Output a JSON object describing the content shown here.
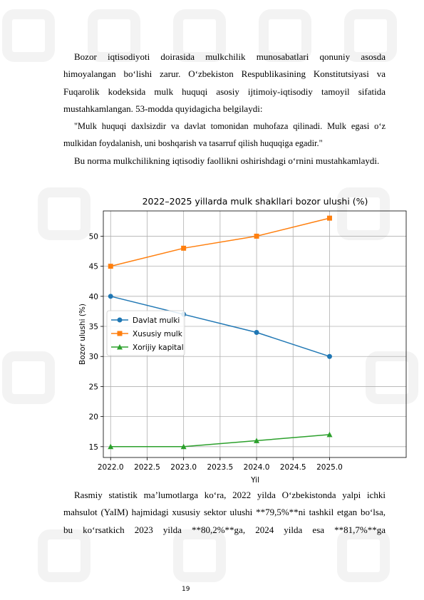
{
  "paragraphs": {
    "p1": "Bozor iqtisodiyoti doirasida mulkchilik munosabatlari qonuniy asosda himoyalangan bo‘lishi zarur. O‘zbekiston Respublikasining Konstitutsiyasi va Fuqarolik kodeksida mulk huquqi asosiy ijtimoiy-iqtisodiy tamoyil sifatida mustahkamlangan. 53-modda quyidagicha belgilaydi:",
    "p2": "\"Mulk huquqi daxlsizdir va davlat tomonidan muhofaza qilinadi. Mulk egasi o‘z mulkidan foydalanish, uni boshqarish va tasarruf qilish huquqiga egadir.\"",
    "p3": "Bu norma mulkchilikning iqtisodiy faollikni oshirishdagi o‘rnini mustahkamlaydi.",
    "p4": "Rasmiy statistik ma’lumotlarga ko‘ra, 2022 yilda O‘zbekistonda yalpi ichki mahsulot (YaIM) hajmidagi xususiy sektor ulushi **79,5%**ni tashkil etgan bo‘lsa, bu ko‘rsatkich 2023 yilda **80,2%**ga, 2024 yilda esa **81,7%**ga"
  },
  "page_number": "19",
  "chart_data": {
    "type": "line",
    "title": "2022–2025 yillarda mulk shakllari bozor ulushi (%)",
    "xlabel": "Yil",
    "ylabel": "Bozor ulushi (%)",
    "xlim": [
      2021.9,
      2026.05
    ],
    "ylim": [
      13.2,
      54.2
    ],
    "xticks": [
      "2022.0",
      "2022.5",
      "2023.0",
      "2023.5",
      "2024.0",
      "2024.5",
      "2025.0"
    ],
    "yticks": [
      "15",
      "20",
      "25",
      "30",
      "35",
      "40",
      "45",
      "50"
    ],
    "grid": true,
    "legend_position": "center-left",
    "x": [
      2022,
      2023,
      2024,
      2025
    ],
    "series": [
      {
        "name": "Davlat mulki",
        "values": [
          40,
          37,
          34,
          30
        ],
        "color": "#1f77b4",
        "marker": "circle"
      },
      {
        "name": "Xususiy mulk",
        "values": [
          45,
          48,
          50,
          53
        ],
        "color": "#ff7f0e",
        "marker": "square"
      },
      {
        "name": "Xorijiy kapital",
        "values": [
          15,
          15,
          16,
          17
        ],
        "color": "#2ca02c",
        "marker": "triangle"
      }
    ]
  }
}
